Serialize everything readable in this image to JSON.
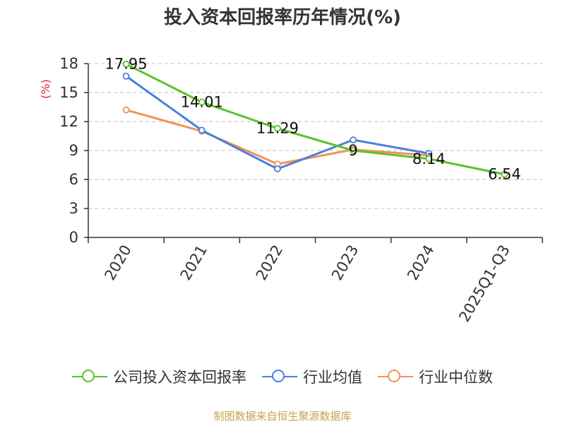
{
  "chart_data": {
    "type": "line",
    "title": "投入资本回报率历年情况(%)",
    "ylabel": "(%)",
    "ylim": [
      0,
      18
    ],
    "yticks": [
      0,
      3,
      6,
      9,
      12,
      15,
      18
    ],
    "grid": true,
    "legend_position": "bottom",
    "categories": [
      "2020",
      "2021",
      "2022",
      "2023",
      "2024",
      "2025Q1-Q3"
    ],
    "series": [
      {
        "name": "公司投入资本回报率",
        "color": "#5cc228",
        "values": [
          17.95,
          14.01,
          11.29,
          9,
          8.14,
          6.54
        ],
        "labels": [
          "17.95",
          "14.01",
          "11.29",
          "9",
          "8.14",
          "6.54"
        ]
      },
      {
        "name": "行业均值",
        "color": "#4a7fdd",
        "values": [
          16.7,
          11.1,
          7.1,
          10.1,
          8.7,
          null
        ]
      },
      {
        "name": "行业中位数",
        "color": "#f49158",
        "values": [
          13.2,
          11.0,
          7.6,
          9.1,
          8.5,
          null
        ]
      }
    ],
    "source": "制图数据来自恒生聚源数据库"
  },
  "colors": {
    "title": "#333333",
    "axis_label": "#e02020",
    "grid": "#cccccc",
    "axis": "#333333",
    "source": "#c8a14b"
  }
}
